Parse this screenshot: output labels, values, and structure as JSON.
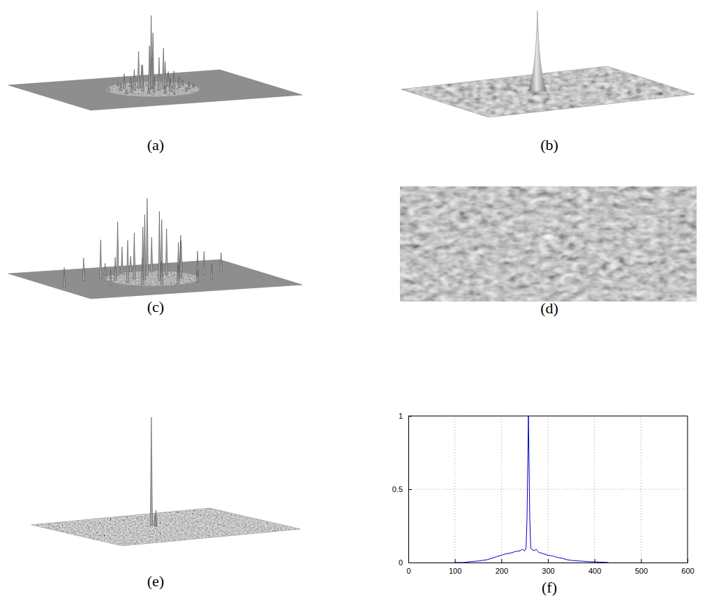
{
  "chart_data": [
    {
      "type": "surface",
      "title": "(a)",
      "marker": "spike",
      "xlim": [
        0,
        1
      ],
      "ylim": [
        0,
        1
      ],
      "zlim": [
        0,
        1
      ],
      "x": [
        0.5,
        0.52,
        0.48,
        0.55,
        0.46,
        0.51,
        0.53,
        0.44,
        0.57,
        0.49,
        0.42,
        0.58,
        0.47,
        0.6,
        0.4,
        0.54,
        0.38,
        0.62,
        0.45,
        0.56,
        0.36,
        0.64,
        0.5,
        0.43,
        0.66,
        0.34,
        0.6,
        0.41,
        0.68,
        0.32,
        0.52,
        0.58
      ],
      "y": [
        0.45,
        0.42,
        0.48,
        0.47,
        0.4,
        0.52,
        0.38,
        0.5,
        0.44,
        0.36,
        0.45,
        0.52,
        0.56,
        0.4,
        0.38,
        0.58,
        0.52,
        0.48,
        0.33,
        0.33,
        0.44,
        0.55,
        0.62,
        0.6,
        0.42,
        0.56,
        0.62,
        0.28,
        0.5,
        0.4,
        0.68,
        0.28
      ],
      "values": [
        1.0,
        0.75,
        0.6,
        0.55,
        0.5,
        0.45,
        0.4,
        0.35,
        0.35,
        0.3,
        0.28,
        0.25,
        0.22,
        0.2,
        0.2,
        0.18,
        0.15,
        0.15,
        0.12,
        0.12,
        0.1,
        0.1,
        0.1,
        0.08,
        0.08,
        0.06,
        0.06,
        0.05,
        0.05,
        0.04,
        0.04,
        0.04
      ]
    },
    {
      "type": "mesh",
      "title": "(b)",
      "marker": "cone",
      "xlim": [
        0,
        1
      ],
      "ylim": [
        0,
        1
      ],
      "zlim": [
        0,
        1
      ],
      "x": [
        0.47
      ],
      "y": [
        0.45
      ],
      "values": [
        1.0
      ]
    },
    {
      "type": "surface",
      "title": "(c)",
      "marker": "spike",
      "xlim": [
        0,
        1
      ],
      "ylim": [
        0,
        1
      ],
      "zlim": [
        0,
        1
      ],
      "x": [
        0.05,
        0.2,
        0.3,
        0.35,
        0.4,
        0.42,
        0.45,
        0.48,
        0.5,
        0.52,
        0.55,
        0.57,
        0.6,
        0.62,
        0.65,
        0.68,
        0.7,
        0.38,
        0.46,
        0.33,
        0.25,
        0.75,
        0.58,
        0.44,
        0.85,
        0.53,
        0.5,
        0.72,
        0.36,
        0.63
      ],
      "y": [
        0.55,
        0.4,
        0.35,
        0.55,
        0.3,
        0.45,
        0.5,
        0.4,
        0.55,
        0.35,
        0.45,
        0.6,
        0.38,
        0.5,
        0.42,
        0.55,
        0.3,
        0.65,
        0.68,
        0.45,
        0.6,
        0.45,
        0.25,
        0.25,
        0.4,
        0.7,
        0.2,
        0.62,
        0.25,
        0.68
      ],
      "values": [
        0.25,
        0.3,
        0.5,
        0.55,
        0.7,
        0.6,
        0.85,
        0.65,
        0.9,
        1.0,
        0.75,
        0.5,
        0.6,
        0.55,
        0.45,
        0.35,
        0.4,
        0.35,
        0.3,
        0.3,
        0.2,
        0.3,
        0.45,
        0.35,
        0.25,
        0.25,
        0.2,
        0.2,
        0.15,
        0.15
      ]
    },
    {
      "type": "image",
      "title": "(d)",
      "xlim": [
        0,
        1
      ],
      "ylim": [
        0,
        1
      ],
      "zlim": [
        0,
        1
      ],
      "x": [
        0.5
      ],
      "y": [
        0.44
      ],
      "values": [
        1.0
      ]
    },
    {
      "type": "mesh",
      "title": "(e)",
      "marker": "spike",
      "xlim": [
        0,
        1
      ],
      "ylim": [
        0,
        1
      ],
      "zlim": [
        0,
        1
      ],
      "x": [
        0.47,
        0.47,
        0.48
      ],
      "y": [
        0.4,
        0.45,
        0.42
      ],
      "values": [
        1.0,
        0.15,
        0.1
      ]
    },
    {
      "type": "line",
      "title": "(f)",
      "color": "#0000c8",
      "grid": true,
      "xlim": [
        0,
        600
      ],
      "xticks": [
        0,
        100,
        200,
        300,
        400,
        500,
        600
      ],
      "ylim": [
        0,
        1
      ],
      "yticks": [
        0,
        0.5,
        1
      ],
      "x": [
        100,
        120,
        130,
        140,
        150,
        160,
        170,
        180,
        190,
        200,
        210,
        220,
        230,
        240,
        245,
        250,
        253,
        255,
        257,
        258,
        259,
        261,
        263,
        265,
        270,
        275,
        280,
        290,
        300,
        310,
        320,
        330,
        340,
        350,
        360,
        370,
        380,
        390,
        400,
        410,
        420,
        430
      ],
      "values": [
        0,
        0,
        0.005,
        0.008,
        0.01,
        0.015,
        0.02,
        0.03,
        0.04,
        0.05,
        0.06,
        0.065,
        0.075,
        0.08,
        0.09,
        0.08,
        0.1,
        0.3,
        0.75,
        1,
        0.78,
        0.3,
        0.1,
        0.09,
        0.08,
        0.09,
        0.07,
        0.06,
        0.05,
        0.045,
        0.035,
        0.03,
        0.02,
        0.015,
        0.012,
        0.01,
        0.008,
        0.005,
        0.005,
        0.003,
        0.002,
        0
      ]
    }
  ]
}
